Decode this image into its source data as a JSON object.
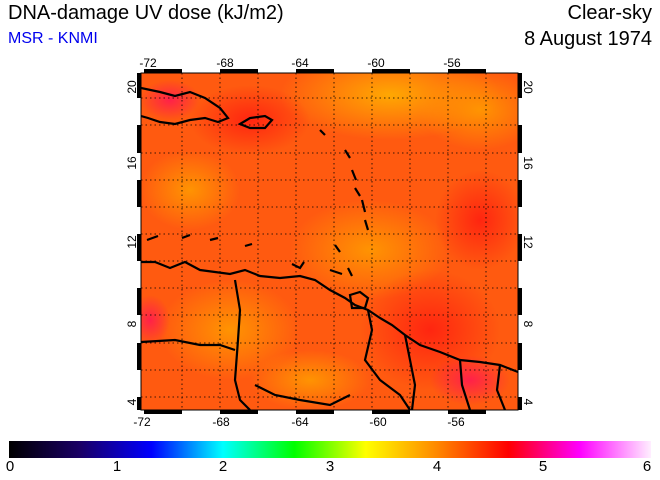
{
  "header": {
    "title": "DNA-damage UV dose (kJ/m2)",
    "credit": "MSR - KNMI",
    "sky": "Clear-sky",
    "date": "8 August 1974"
  },
  "map": {
    "lon_ticks": [
      "-72",
      "-68",
      "-64",
      "-60",
      "-56"
    ],
    "lat_ticks": [
      "4",
      "8",
      "12",
      "16",
      "20"
    ],
    "lon_range": [
      -72,
      -52
    ],
    "lat_range": [
      3.5,
      20.5
    ]
  },
  "colorbar": {
    "labels": [
      "0",
      "1",
      "2",
      "3",
      "4",
      "5",
      "6"
    ],
    "stops": [
      "#000000",
      "#1a0066",
      "#0000ff",
      "#00ffff",
      "#00ff00",
      "#ffff00",
      "#ff8800",
      "#ff0000",
      "#ff00ff",
      "#ffeeff"
    ]
  }
}
